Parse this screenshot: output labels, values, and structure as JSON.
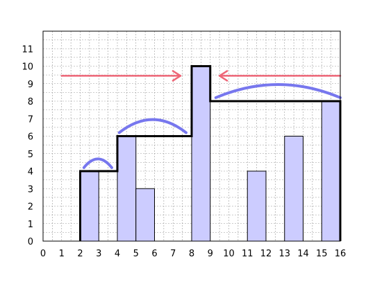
{
  "chart_data": {
    "type": "bar",
    "x_ticks": [
      "0",
      "1",
      "2",
      "3",
      "4",
      "5",
      "6",
      "7",
      "8",
      "9",
      "10",
      "11",
      "12",
      "13",
      "14",
      "15",
      "16"
    ],
    "y_ticks": [
      "0",
      "1",
      "2",
      "3",
      "4",
      "5",
      "6",
      "7",
      "8",
      "9",
      "10",
      "11"
    ],
    "xlim": [
      0,
      16
    ],
    "ylim": [
      0,
      12
    ],
    "grid": true,
    "grid_step": 0.5,
    "bars": [
      {
        "x_start": 2,
        "x_end": 3,
        "value": 4
      },
      {
        "x_start": 4,
        "x_end": 5,
        "value": 6
      },
      {
        "x_start": 5,
        "x_end": 6,
        "value": 3
      },
      {
        "x_start": 8,
        "x_end": 9,
        "value": 10
      },
      {
        "x_start": 11,
        "x_end": 12,
        "value": 4
      },
      {
        "x_start": 13,
        "x_end": 14,
        "value": 6
      },
      {
        "x_start": 15,
        "x_end": 16,
        "value": 8
      }
    ],
    "envelope": [
      [
        2,
        0
      ],
      [
        2,
        4
      ],
      [
        4,
        4
      ],
      [
        4,
        6
      ],
      [
        8,
        6
      ],
      [
        8,
        10
      ],
      [
        9,
        10
      ],
      [
        9,
        8
      ],
      [
        16,
        8
      ],
      [
        16,
        0
      ]
    ],
    "annotations": {
      "arcs": [
        {
          "x_from": 2.2,
          "x_to": 3.7,
          "y_base": 4.2,
          "rise": 0.5
        },
        {
          "x_from": 4.1,
          "x_to": 7.7,
          "y_base": 6.2,
          "rise": 0.75
        },
        {
          "x_from": 9.3,
          "x_to": 16.0,
          "y_base": 8.2,
          "rise": 0.75
        }
      ],
      "arrows": [
        {
          "x_from": 1.0,
          "x_to": 7.4,
          "y": 9.45,
          "direction": "right"
        },
        {
          "x_from": 16.0,
          "x_to": 9.5,
          "y": 9.45,
          "direction": "left"
        }
      ]
    },
    "colors": {
      "bar_fill": "#ccccff",
      "bar_stroke": "#000000",
      "envelope": "#000000",
      "arc": "#7777ee",
      "arrow": "#ee6677",
      "grid": "#999999",
      "frame": "#000000"
    }
  }
}
